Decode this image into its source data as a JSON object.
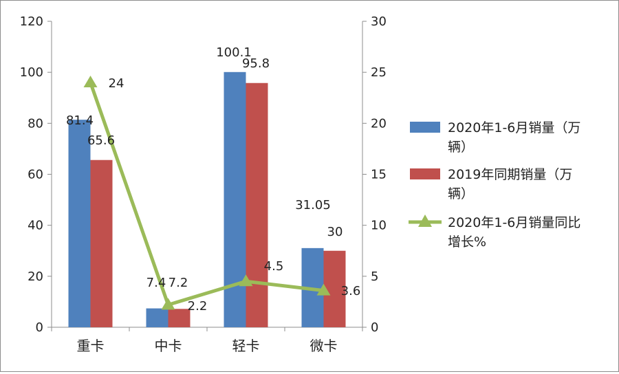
{
  "chart_data": {
    "type": "bar",
    "categories": [
      "重卡",
      "中卡",
      "轻卡",
      "微卡"
    ],
    "series": [
      {
        "name": "2020年1-6月销量（万辆）",
        "type": "bar",
        "axis": "left",
        "color": "#4f81bd",
        "values": [
          81.4,
          7.4,
          100.1,
          31.05
        ],
        "labels": [
          "81.4",
          "7.4",
          "100.1",
          "31.05"
        ]
      },
      {
        "name": "2019年同期销量（万辆）",
        "type": "bar",
        "axis": "left",
        "color": "#c0504d",
        "values": [
          65.6,
          7.2,
          95.8,
          30
        ],
        "labels": [
          "65.6",
          "7.2",
          "95.8",
          "30"
        ]
      },
      {
        "name": "2020年1-6月销量同比增长%",
        "type": "line",
        "axis": "right",
        "color": "#9bbb59",
        "values": [
          24,
          2.2,
          4.5,
          3.6
        ],
        "labels": [
          "24",
          "2.2",
          "4.5",
          "3.6"
        ]
      }
    ],
    "y_left": {
      "min": 0,
      "max": 120,
      "ticks": [
        "0",
        "20",
        "40",
        "60",
        "80",
        "100",
        "120"
      ]
    },
    "y_right": {
      "min": 0,
      "max": 30,
      "ticks": [
        "0",
        "5",
        "10",
        "15",
        "20",
        "25",
        "30"
      ]
    },
    "grid": false,
    "legend_position": "right",
    "legend": [
      {
        "line1": "2020年1-6月销量（万",
        "line2": "辆）"
      },
      {
        "line1": "2019年同期销量（万",
        "line2": "辆）"
      },
      {
        "line1": "2020年1-6月销量同比",
        "line2": "增长%"
      }
    ]
  }
}
